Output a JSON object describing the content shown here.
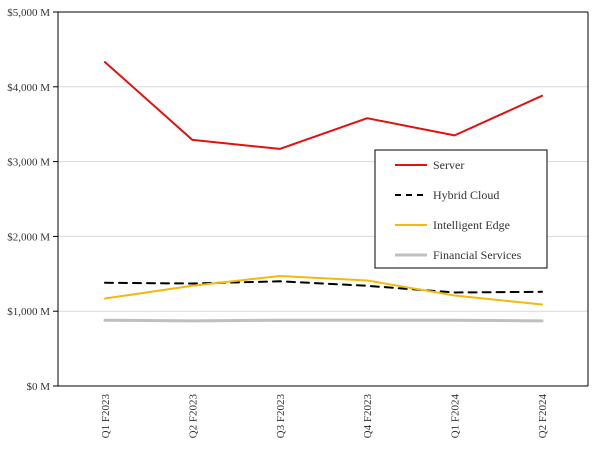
{
  "chart_data": {
    "type": "line",
    "categories": [
      "Q1 F2023",
      "Q2 F2023",
      "Q3 F2023",
      "Q4 F2023",
      "Q1 F2024",
      "Q2 F2024"
    ],
    "ylim": [
      0,
      5000
    ],
    "yticks": [
      0,
      1000,
      2000,
      3000,
      4000,
      5000
    ],
    "ytick_labels": [
      "$0 M",
      "$1,000 M",
      "$2,000 M",
      "$3,000 M",
      "$4,000 M",
      "$5,000 M"
    ],
    "grid": true,
    "legend_position": "right",
    "series": [
      {
        "name": "Server",
        "values": [
          4330,
          3290,
          3170,
          3580,
          3350,
          3880
        ],
        "color": "#e0120f",
        "dash": "solid"
      },
      {
        "name": "Hybrid Cloud",
        "values": [
          1380,
          1370,
          1400,
          1340,
          1250,
          1260
        ],
        "color": "#000000",
        "dash": "dashed"
      },
      {
        "name": "Intelligent Edge",
        "values": [
          1170,
          1340,
          1470,
          1410,
          1210,
          1090
        ],
        "color": "#f2b90f",
        "dash": "solid"
      },
      {
        "name": "Financial Services",
        "values": [
          880,
          870,
          880,
          880,
          880,
          870
        ],
        "color": "#bfbfbf",
        "dash": "solid"
      }
    ]
  }
}
